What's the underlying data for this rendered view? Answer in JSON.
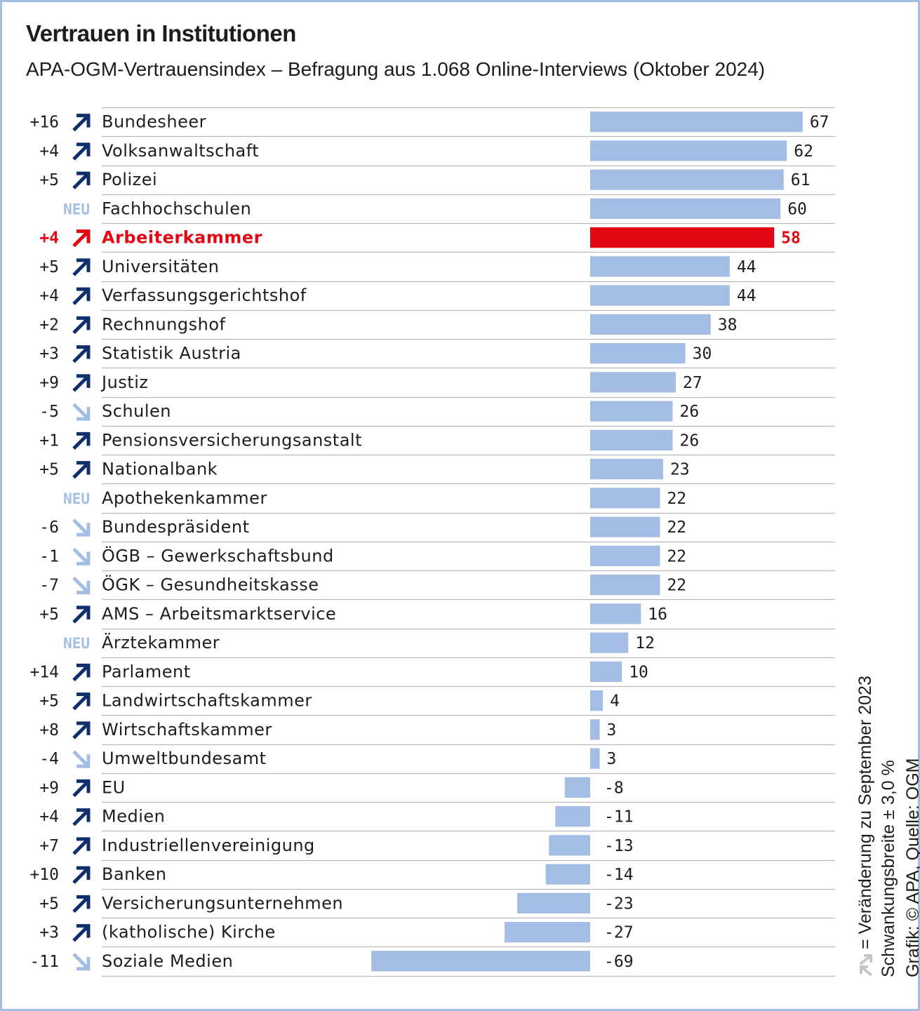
{
  "title": "Vertrauen in Institutionen",
  "subtitle": "APA-OGM-Vertrauensindex – Befragung aus 1.068 Online-Interviews (Oktober 2024)",
  "side_note": {
    "legend": "= Veränderung zu September 2023",
    "margin_of_error": "Schwankungsbreite ± 3,0 %",
    "credit": "Grafik: © APA, Quelle: OGM"
  },
  "colors": {
    "bar": "#a4bde4",
    "highlight": "#e30613",
    "arrow_up": "#0e2f6b",
    "arrow_down": "#a4bde4",
    "neu": "#a4bde4",
    "text": "#1d1d1b",
    "gridline": "#b9b9b9",
    "legend_arrow": "#c6c6c6"
  },
  "chart_data": {
    "type": "bar",
    "orientation": "horizontal",
    "categories": [
      "Bundesheer",
      "Volksanwaltschaft",
      "Polizei",
      "Fachhochschulen",
      "Arbeiterkammer",
      "Universitäten",
      "Verfassungsgerichtshof",
      "Rechnungshof",
      "Statistik Austria",
      "Justiz",
      "Schulen",
      "Pensionsversicherungsanstalt",
      "Nationalbank",
      "Apothekenkammer",
      "Bundespräsident",
      "ÖGB – Gewerkschaftsbund",
      "ÖGK – Gesundheitskasse",
      "AMS – Arbeitsmarktservice",
      "Ärztekammer",
      "Parlament",
      "Landwirtschaftskammer",
      "Wirtschaftskammer",
      "Umweltbundesamt",
      "EU",
      "Medien",
      "Industriellenvereinigung",
      "Banken",
      "Versicherungsunternehmen",
      "(katholische) Kirche",
      "Soziale Medien"
    ],
    "values": [
      67,
      62,
      61,
      60,
      58,
      44,
      44,
      38,
      30,
      27,
      26,
      26,
      23,
      22,
      22,
      22,
      22,
      16,
      12,
      10,
      4,
      3,
      3,
      -8,
      -11,
      -13,
      -14,
      -23,
      -27,
      -69
    ],
    "value_labels": [
      "67",
      "62",
      "61",
      "60",
      "58",
      "44",
      "44",
      "38",
      "30",
      "27",
      "26",
      "26",
      "23",
      "22",
      "22",
      "22",
      "22",
      "16",
      "12",
      "10",
      "4",
      "3",
      "3",
      "-8",
      "-11",
      "-13",
      "-14",
      "-23",
      "-27",
      "-69"
    ],
    "changes": [
      "+16",
      "+4",
      "+5",
      "NEU",
      "+4",
      "+5",
      "+4",
      "+2",
      "+3",
      "+9",
      "-5",
      "+1",
      "+5",
      "NEU",
      "-6",
      "-1",
      "-7",
      "+5",
      "NEU",
      "+14",
      "+5",
      "+8",
      "-4",
      "+9",
      "+4",
      "+7",
      "+10",
      "+5",
      "+3",
      "-11"
    ],
    "highlight": [
      "Arbeiterkammer"
    ],
    "xlim": [
      -69,
      67
    ],
    "grid": false
  }
}
